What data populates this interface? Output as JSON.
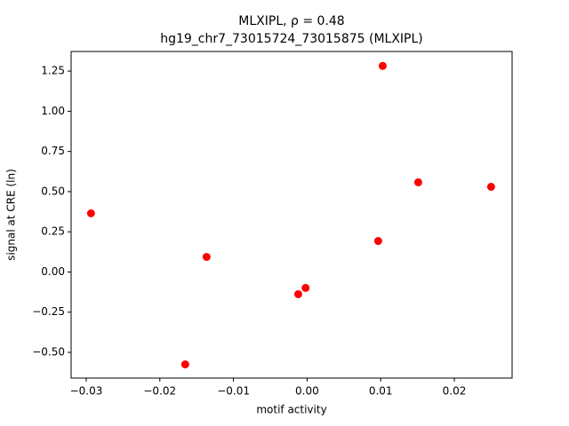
{
  "chart_data": {
    "type": "scatter",
    "title": "MLXIPL, ρ = 0.48",
    "subtitle": "hg19_chr7_73015724_73015875 (MLXIPL)",
    "x_label": "motif activity",
    "y_label": "signal at CRE (ln)",
    "series": [
      {
        "color": "#ff0000",
        "x": [
          -0.02935,
          -0.01655,
          -0.01365,
          -0.0012,
          -0.0002,
          0.00966,
          0.01027,
          0.0151,
          0.025
        ],
        "values": [
          0.365,
          -0.575,
          0.094,
          -0.138,
          -0.099,
          0.193,
          1.282,
          0.558,
          0.53
        ]
      }
    ],
    "xlim": [
      -0.03205,
      0.02785
    ],
    "ylim": [
      -0.66,
      1.372
    ],
    "xticks": [
      {
        "value": -0.03,
        "label": "−0.03"
      },
      {
        "value": -0.02,
        "label": "−0.02"
      },
      {
        "value": -0.01,
        "label": "−0.01"
      },
      {
        "value": 0,
        "label": "0.00"
      },
      0.01,
      0.02
    ],
    "yticks": [
      {
        "value": -0.5,
        "label": "−0.50"
      },
      {
        "value": -0.25,
        "label": "−0.25"
      },
      {
        "value": 0,
        "label": "0.00"
      },
      0.25,
      {
        "value": 0.5,
        "label": "0.50"
      },
      0.75,
      {
        "value": 1,
        "label": "1.00"
      },
      1.25
    ]
  }
}
